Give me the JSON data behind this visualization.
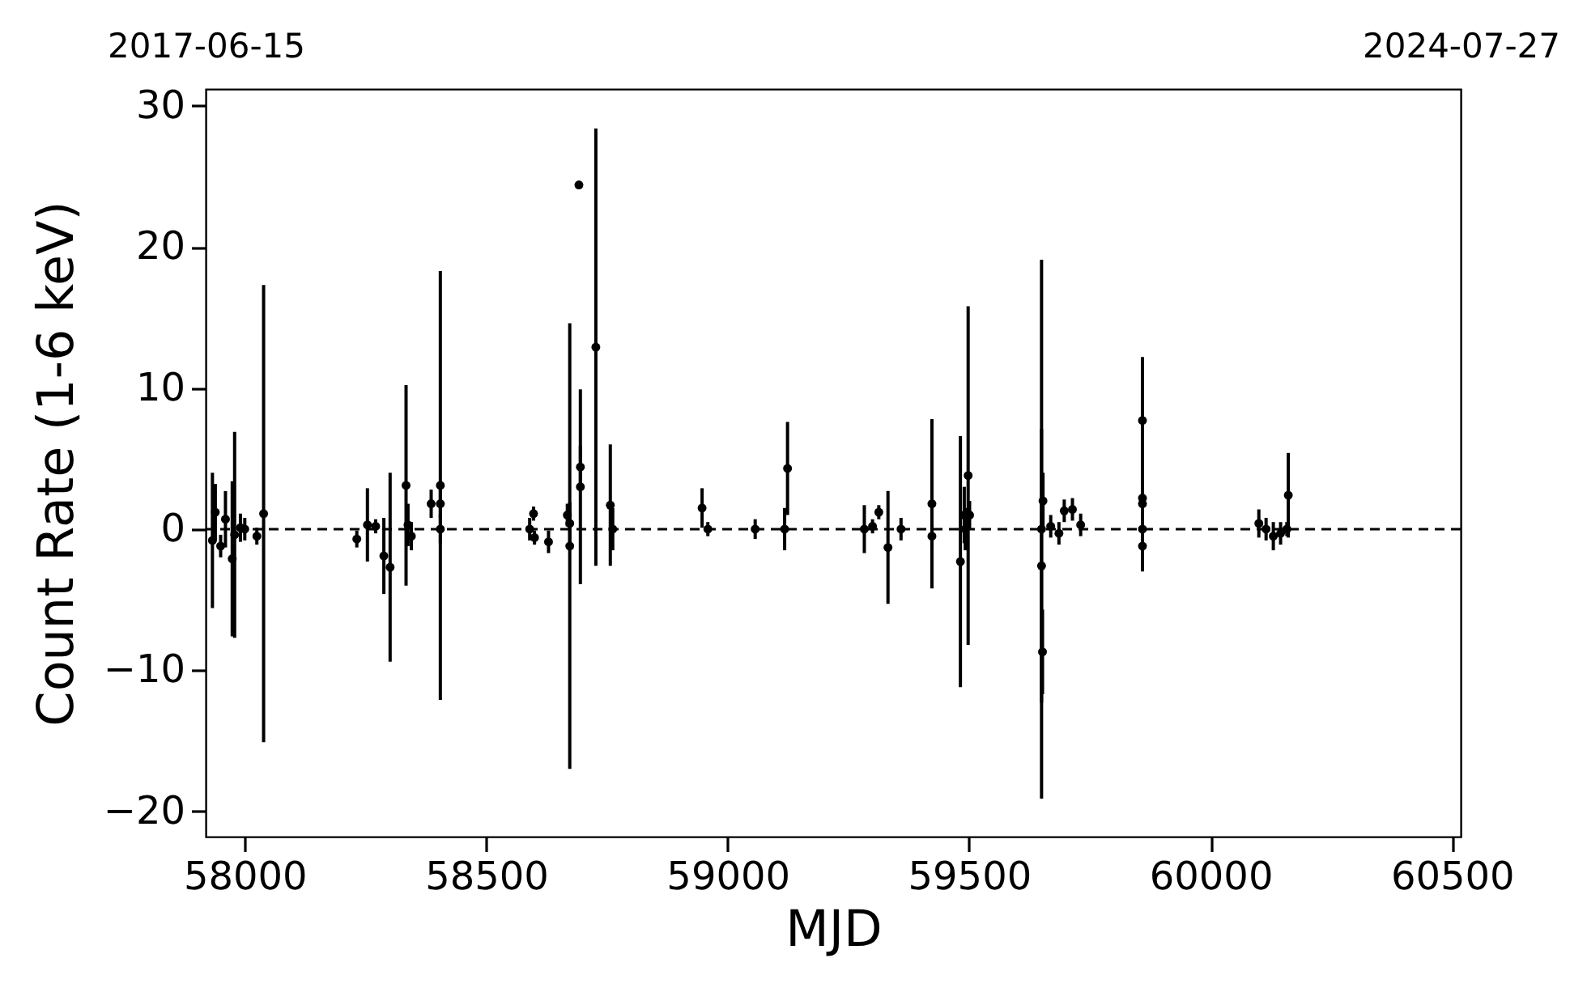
{
  "chart_data": {
    "type": "scatter",
    "xlabel": "MJD",
    "ylabel": "Count Rate (1-6 keV)",
    "x": [
      57933,
      57939,
      57950,
      57960,
      57974,
      57979,
      57991,
      58000,
      58025,
      58039,
      58232,
      58254,
      58271,
      58288,
      58301,
      58334,
      58338,
      58345,
      58386,
      58405,
      58405,
      58405,
      58590,
      58598,
      58600,
      58629,
      58668,
      58673,
      58673,
      58692,
      58695,
      58695,
      58727,
      58757,
      58762,
      58947,
      58959,
      59057,
      59118,
      59124,
      59283,
      59300,
      59313,
      59332,
      59359,
      59423,
      59423,
      59482,
      59490,
      59492,
      59498,
      59501,
      59650,
      59650,
      59652,
      59653,
      59669,
      59686,
      59697,
      59714,
      59731,
      59859,
      59859,
      59859,
      59859,
      59859,
      60100,
      60115,
      60130,
      60145,
      60158,
      60161
    ],
    "values": [
      -0.8,
      1.2,
      -1.2,
      0.7,
      -2.1,
      -0.4,
      0.1,
      0,
      -0.5,
      1.1,
      -0.7,
      0.3,
      0.2,
      -1.9,
      -2.7,
      3.1,
      0.3,
      -0.5,
      1.8,
      3.1,
      1.8,
      0,
      0,
      1.1,
      -0.6,
      -0.9,
      1.0,
      0.4,
      -1.2,
      24.4,
      4.4,
      3.0,
      12.9,
      1.7,
      0,
      1.5,
      0,
      0,
      0,
      4.3,
      0,
      0.2,
      1.2,
      -1.3,
      0,
      1.8,
      -0.5,
      -2.3,
      1.0,
      0,
      3.8,
      1.0,
      0,
      -2.6,
      -8.7,
      2.0,
      0.2,
      -0.3,
      1.3,
      1.4,
      0.3,
      7.7,
      2.2,
      1.8,
      0,
      -1.2,
      0.4,
      0,
      -0.5,
      -0.3,
      0,
      2.4
    ],
    "errors": [
      4.8,
      2,
      0.8,
      2,
      5.5,
      7.3,
      1,
      0.8,
      0.6,
      16.2,
      0.6,
      2.6,
      0.5,
      2.7,
      6.7,
      7.1,
      1.5,
      1,
      1,
      15.2,
      1,
      1,
      0.8,
      0.5,
      0.5,
      0.8,
      0.8,
      1.5,
      15.8,
      null,
      1.5,
      6.9,
      15.5,
      4.3,
      1.5,
      1.4,
      0.5,
      0.7,
      1.5,
      3.3,
      1.7,
      0.5,
      0.5,
      4,
      0.8,
      6,
      0.8,
      8.9,
      2,
      1.5,
      12,
      1,
      19.1,
      9.7,
      3,
      2,
      0.8,
      0.8,
      0.8,
      0.8,
      0.8,
      4.5,
      2,
      1,
      1.5,
      1.8,
      1,
      0.8,
      1,
      0.8,
      0.5,
      3
    ],
    "color": "#000000",
    "marker": "circle",
    "xlim": [
      57919,
      60518
    ],
    "xticks": [
      58000,
      58500,
      59000,
      59500,
      60000,
      60500
    ],
    "x2lim": [
      "2017-06-15",
      "2024-07-27"
    ],
    "x2ticks": [
      "2017-06-15",
      "2024-07-27"
    ],
    "ylim": [
      -21.8,
      31.2
    ],
    "yticks": [
      -20,
      -10,
      0,
      10,
      20,
      30
    ],
    "ref_lines": [
      {
        "axis": "y",
        "value": 0,
        "color": "#000000",
        "line_style": "dashed"
      }
    ],
    "grid": false
  }
}
